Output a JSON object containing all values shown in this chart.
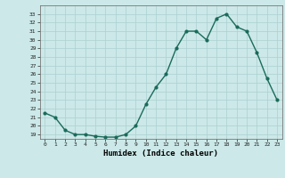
{
  "x": [
    0,
    1,
    2,
    3,
    4,
    5,
    6,
    7,
    8,
    9,
    10,
    11,
    12,
    13,
    14,
    15,
    16,
    17,
    18,
    19,
    20,
    21,
    22,
    23
  ],
  "y": [
    21.5,
    21.0,
    19.5,
    19.0,
    19.0,
    18.8,
    18.7,
    18.7,
    19.0,
    20.0,
    22.5,
    24.5,
    26.0,
    29.0,
    31.0,
    31.0,
    30.0,
    32.5,
    33.0,
    31.5,
    31.0,
    28.5,
    25.5,
    23.0
  ],
  "xlabel": "Humidex (Indice chaleur)",
  "ylim": [
    18.5,
    34.0
  ],
  "xlim": [
    -0.5,
    23.5
  ],
  "yticks": [
    19,
    20,
    21,
    22,
    23,
    24,
    25,
    26,
    27,
    28,
    29,
    30,
    31,
    32,
    33
  ],
  "xticks": [
    0,
    1,
    2,
    3,
    4,
    5,
    6,
    7,
    8,
    9,
    10,
    11,
    12,
    13,
    14,
    15,
    16,
    17,
    18,
    19,
    20,
    21,
    22,
    23
  ],
  "line_color": "#1a6b5a",
  "marker_color": "#1a6b5a",
  "bg_color": "#cce8e8",
  "grid_color": "#aad0d0"
}
